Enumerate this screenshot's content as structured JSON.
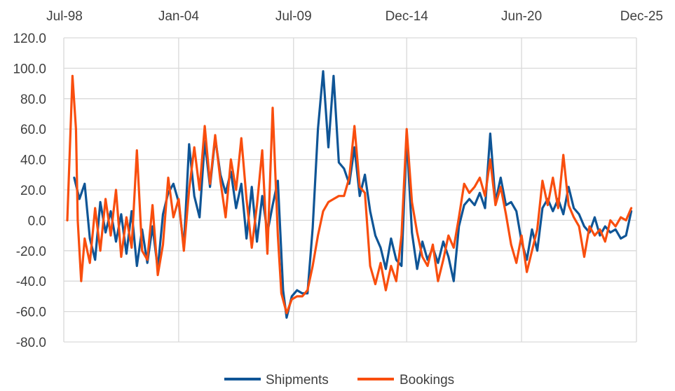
{
  "chart_data": {
    "type": "line",
    "title": "",
    "xlabel": "",
    "ylabel": "",
    "x_tick_labels": [
      "Jul-98",
      "Jan-04",
      "Jul-09",
      "Dec-14",
      "Jun-20",
      "Dec-25"
    ],
    "x_range": [
      "1998-07",
      "2025-12"
    ],
    "ylim": [
      -80,
      120
    ],
    "y_ticks": [
      "120.0",
      "100.0",
      "80.0",
      "60.0",
      "40.0",
      "20.0",
      "0.0",
      "-20.0",
      "-40.0",
      "-60.0",
      "-80.0"
    ],
    "grid": true,
    "legend_position": "bottom",
    "series": [
      {
        "name": "Shipments",
        "color": "#0f5596",
        "points": [
          [
            "1999-01",
            28
          ],
          [
            "1999-04",
            14
          ],
          [
            "1999-07",
            24
          ],
          [
            "1999-10",
            -12
          ],
          [
            "2000-01",
            -26
          ],
          [
            "2000-04",
            12
          ],
          [
            "2000-07",
            -8
          ],
          [
            "2000-10",
            6
          ],
          [
            "2001-01",
            -14
          ],
          [
            "2001-04",
            4
          ],
          [
            "2001-07",
            -22
          ],
          [
            "2001-10",
            6
          ],
          [
            "2002-01",
            -30
          ],
          [
            "2002-04",
            -6
          ],
          [
            "2002-07",
            -28
          ],
          [
            "2002-10",
            -4
          ],
          [
            "2003-01",
            -32
          ],
          [
            "2003-04",
            4
          ],
          [
            "2003-07",
            18
          ],
          [
            "2003-10",
            24
          ],
          [
            "2004-01",
            12
          ],
          [
            "2004-04",
            -18
          ],
          [
            "2004-07",
            50
          ],
          [
            "2004-10",
            16
          ],
          [
            "2005-01",
            2
          ],
          [
            "2005-04",
            52
          ],
          [
            "2005-07",
            22
          ],
          [
            "2005-10",
            54
          ],
          [
            "2006-01",
            30
          ],
          [
            "2006-04",
            18
          ],
          [
            "2006-07",
            32
          ],
          [
            "2006-10",
            8
          ],
          [
            "2007-01",
            24
          ],
          [
            "2007-04",
            -12
          ],
          [
            "2007-07",
            22
          ],
          [
            "2007-10",
            -14
          ],
          [
            "2008-01",
            16
          ],
          [
            "2008-04",
            -8
          ],
          [
            "2008-07",
            10
          ],
          [
            "2008-10",
            26
          ],
          [
            "2009-01",
            -46
          ],
          [
            "2009-03",
            -64
          ],
          [
            "2009-06",
            -50
          ],
          [
            "2009-09",
            -46
          ],
          [
            "2009-12",
            -48
          ],
          [
            "2010-03",
            -48
          ],
          [
            "2010-06",
            -5
          ],
          [
            "2010-09",
            60
          ],
          [
            "2010-12",
            98
          ],
          [
            "2011-03",
            48
          ],
          [
            "2011-06",
            95
          ],
          [
            "2011-09",
            38
          ],
          [
            "2011-12",
            34
          ],
          [
            "2012-03",
            24
          ],
          [
            "2012-06",
            48
          ],
          [
            "2012-09",
            16
          ],
          [
            "2012-12",
            30
          ],
          [
            "2013-03",
            6
          ],
          [
            "2013-06",
            -10
          ],
          [
            "2013-09",
            -18
          ],
          [
            "2013-12",
            -32
          ],
          [
            "2014-03",
            -12
          ],
          [
            "2014-06",
            -26
          ],
          [
            "2014-09",
            -30
          ],
          [
            "2014-12",
            55
          ],
          [
            "2015-03",
            -8
          ],
          [
            "2015-06",
            -32
          ],
          [
            "2015-09",
            -14
          ],
          [
            "2015-12",
            -26
          ],
          [
            "2016-03",
            -18
          ],
          [
            "2016-06",
            -28
          ],
          [
            "2016-09",
            -14
          ],
          [
            "2016-12",
            -24
          ],
          [
            "2017-03",
            -40
          ],
          [
            "2017-06",
            -4
          ],
          [
            "2017-09",
            10
          ],
          [
            "2017-12",
            14
          ],
          [
            "2018-03",
            10
          ],
          [
            "2018-06",
            18
          ],
          [
            "2018-09",
            8
          ],
          [
            "2018-12",
            57
          ],
          [
            "2019-03",
            12
          ],
          [
            "2019-06",
            28
          ],
          [
            "2019-09",
            10
          ],
          [
            "2019-12",
            12
          ],
          [
            "2020-03",
            6
          ],
          [
            "2020-06",
            -14
          ],
          [
            "2020-09",
            -26
          ],
          [
            "2020-12",
            -6
          ],
          [
            "2021-03",
            -20
          ],
          [
            "2021-06",
            8
          ],
          [
            "2021-09",
            14
          ],
          [
            "2021-12",
            6
          ],
          [
            "2022-03",
            14
          ],
          [
            "2022-06",
            4
          ],
          [
            "2022-09",
            22
          ],
          [
            "2022-12",
            8
          ],
          [
            "2023-03",
            4
          ],
          [
            "2023-06",
            -4
          ],
          [
            "2023-09",
            -8
          ],
          [
            "2023-12",
            2
          ],
          [
            "2024-03",
            -10
          ],
          [
            "2024-06",
            -4
          ],
          [
            "2024-09",
            -8
          ],
          [
            "2024-12",
            -6
          ],
          [
            "2025-03",
            -12
          ],
          [
            "2025-06",
            -10
          ],
          [
            "2025-09",
            6
          ]
        ]
      },
      {
        "name": "Bookings",
        "color": "#f94e0e",
        "points": [
          [
            "1998-09",
            0
          ],
          [
            "1998-12",
            95
          ],
          [
            "1999-02",
            60
          ],
          [
            "1999-03",
            0
          ],
          [
            "1999-05",
            -40
          ],
          [
            "1999-07",
            -12
          ],
          [
            "1999-10",
            -28
          ],
          [
            "2000-01",
            8
          ],
          [
            "2000-04",
            -20
          ],
          [
            "2000-07",
            14
          ],
          [
            "2000-10",
            -10
          ],
          [
            "2001-01",
            20
          ],
          [
            "2001-04",
            -24
          ],
          [
            "2001-07",
            2
          ],
          [
            "2001-10",
            -18
          ],
          [
            "2002-01",
            46
          ],
          [
            "2002-04",
            -20
          ],
          [
            "2002-07",
            -26
          ],
          [
            "2002-10",
            10
          ],
          [
            "2003-01",
            -36
          ],
          [
            "2003-04",
            -16
          ],
          [
            "2003-07",
            28
          ],
          [
            "2003-10",
            2
          ],
          [
            "2004-01",
            14
          ],
          [
            "2004-04",
            -20
          ],
          [
            "2004-07",
            20
          ],
          [
            "2004-10",
            48
          ],
          [
            "2005-01",
            20
          ],
          [
            "2005-04",
            62
          ],
          [
            "2005-07",
            24
          ],
          [
            "2005-10",
            56
          ],
          [
            "2006-01",
            26
          ],
          [
            "2006-04",
            2
          ],
          [
            "2006-07",
            40
          ],
          [
            "2006-10",
            20
          ],
          [
            "2007-01",
            54
          ],
          [
            "2007-04",
            14
          ],
          [
            "2007-07",
            -18
          ],
          [
            "2007-10",
            10
          ],
          [
            "2008-01",
            46
          ],
          [
            "2008-04",
            -22
          ],
          [
            "2008-07",
            74
          ],
          [
            "2008-10",
            -10
          ],
          [
            "2008-12",
            -48
          ],
          [
            "2009-03",
            -61
          ],
          [
            "2009-06",
            -52
          ],
          [
            "2009-09",
            -50
          ],
          [
            "2009-12",
            -50
          ],
          [
            "2010-03",
            -46
          ],
          [
            "2010-06",
            -30
          ],
          [
            "2010-09",
            -10
          ],
          [
            "2010-12",
            6
          ],
          [
            "2011-03",
            12
          ],
          [
            "2011-06",
            14
          ],
          [
            "2011-09",
            16
          ],
          [
            "2011-12",
            16
          ],
          [
            "2012-03",
            28
          ],
          [
            "2012-06",
            62
          ],
          [
            "2012-09",
            22
          ],
          [
            "2012-12",
            18
          ],
          [
            "2013-03",
            -30
          ],
          [
            "2013-06",
            -42
          ],
          [
            "2013-09",
            -28
          ],
          [
            "2013-12",
            -46
          ],
          [
            "2014-03",
            -30
          ],
          [
            "2014-06",
            -40
          ],
          [
            "2014-09",
            -10
          ],
          [
            "2014-12",
            60
          ],
          [
            "2015-03",
            12
          ],
          [
            "2015-06",
            -8
          ],
          [
            "2015-09",
            -24
          ],
          [
            "2015-12",
            -30
          ],
          [
            "2016-03",
            -16
          ],
          [
            "2016-06",
            -40
          ],
          [
            "2016-09",
            -26
          ],
          [
            "2016-12",
            -10
          ],
          [
            "2017-03",
            -18
          ],
          [
            "2017-06",
            2
          ],
          [
            "2017-09",
            24
          ],
          [
            "2017-12",
            18
          ],
          [
            "2018-03",
            22
          ],
          [
            "2018-06",
            28
          ],
          [
            "2018-09",
            16
          ],
          [
            "2018-12",
            40
          ],
          [
            "2019-03",
            10
          ],
          [
            "2019-06",
            22
          ],
          [
            "2019-09",
            4
          ],
          [
            "2019-12",
            -16
          ],
          [
            "2020-03",
            -28
          ],
          [
            "2020-06",
            -10
          ],
          [
            "2020-09",
            -34
          ],
          [
            "2020-12",
            -20
          ],
          [
            "2021-03",
            -6
          ],
          [
            "2021-06",
            26
          ],
          [
            "2021-09",
            10
          ],
          [
            "2021-12",
            28
          ],
          [
            "2022-03",
            8
          ],
          [
            "2022-06",
            43
          ],
          [
            "2022-09",
            10
          ],
          [
            "2022-12",
            2
          ],
          [
            "2023-03",
            -4
          ],
          [
            "2023-06",
            -24
          ],
          [
            "2023-09",
            -4
          ],
          [
            "2023-12",
            -10
          ],
          [
            "2024-03",
            -6
          ],
          [
            "2024-06",
            -14
          ],
          [
            "2024-09",
            0
          ],
          [
            "2024-12",
            -4
          ],
          [
            "2025-03",
            2
          ],
          [
            "2025-06",
            0
          ],
          [
            "2025-09",
            8
          ]
        ]
      }
    ]
  }
}
